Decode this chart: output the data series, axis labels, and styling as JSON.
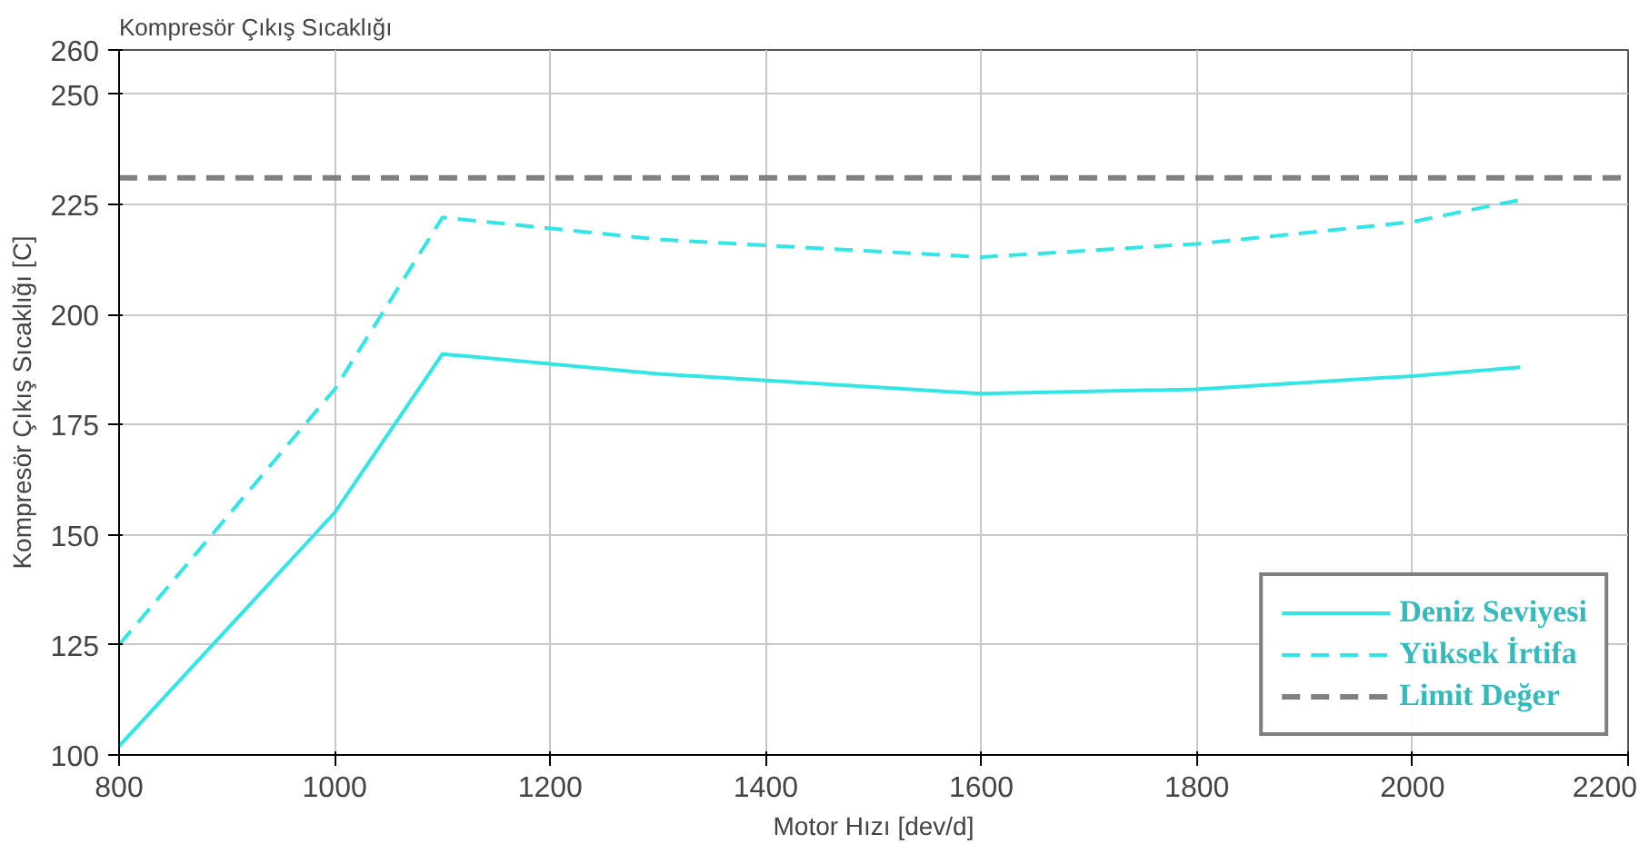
{
  "chart_data": {
    "type": "line",
    "title": "Kompresör Çıkış Sıcaklığı",
    "xlabel": "Motor Hızı [dev/d]",
    "ylabel": "Kompresör Çıkış Sıcaklığı [C]",
    "x": [
      800,
      1000,
      1100,
      1300,
      1600,
      1800,
      2000,
      2100
    ],
    "series": [
      {
        "name": "Deniz Seviyesi",
        "color": "#33e6e6",
        "line_style": "solid",
        "values": [
          102,
          155,
          191,
          186.5,
          182,
          183,
          186,
          188
        ]
      },
      {
        "name": "Yüksek İrtifa",
        "color": "#33e6e6",
        "line_style": "dashed",
        "values": [
          125,
          183,
          222,
          217,
          213,
          216,
          221,
          226
        ]
      }
    ],
    "ref_lines": [
      {
        "axis": "y",
        "value": 231,
        "label": "Limit Değer",
        "color": "#808080",
        "line_style": "dashed"
      }
    ],
    "xlim": [
      800,
      2200
    ],
    "xticks": [
      800,
      1000,
      1200,
      1400,
      1600,
      1800,
      2000,
      2200
    ],
    "ylim": [
      100,
      260
    ],
    "yticks": [
      100,
      125,
      150,
      175,
      200,
      225,
      250,
      260
    ],
    "grid": true,
    "legend": "bottom right"
  }
}
